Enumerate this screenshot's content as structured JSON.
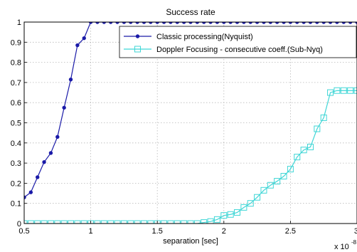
{
  "chart_data": {
    "type": "line",
    "title": "Success rate",
    "xlabel": "separation [sec]",
    "ylabel": "",
    "x_exponent_base": "x 10",
    "x_exponent_power": "-8",
    "xlim": [
      0.5,
      3
    ],
    "ylim": [
      0,
      1
    ],
    "xticks": [
      0.5,
      1,
      1.5,
      2,
      2.5,
      3
    ],
    "xtick_labels": [
      "0.5",
      "1",
      "1.5",
      "2",
      "2.5",
      "3"
    ],
    "yticks": [
      0,
      0.1,
      0.2,
      0.3,
      0.4,
      0.5,
      0.6,
      0.7,
      0.8,
      0.9,
      1
    ],
    "ytick_labels": [
      "0",
      "0.1",
      "0.2",
      "0.3",
      "0.4",
      "0.5",
      "0.6",
      "0.7",
      "0.8",
      "0.9",
      "1"
    ],
    "grid": true,
    "legend_position": "top-right",
    "series": [
      {
        "name": "Classic processing(Nyquist)",
        "color": "#1a1aa8",
        "marker": "dot",
        "x": [
          0.5,
          0.55,
          0.6,
          0.65,
          0.7,
          0.75,
          0.8,
          0.85,
          0.9,
          0.95,
          1.0,
          1.05,
          1.1,
          1.15,
          1.2,
          1.25,
          1.3,
          1.35,
          1.4,
          1.45,
          1.5,
          1.55,
          1.6,
          1.65,
          1.7,
          1.75,
          1.8,
          1.85,
          1.9,
          1.95,
          2.0,
          2.05,
          2.1,
          2.15,
          2.2,
          2.25,
          2.3,
          2.35,
          2.4,
          2.45,
          2.5,
          2.55,
          2.6,
          2.65,
          2.7,
          2.75,
          2.8,
          2.85,
          2.9,
          2.95,
          3.0
        ],
        "y": [
          0.13,
          0.155,
          0.23,
          0.305,
          0.35,
          0.43,
          0.575,
          0.715,
          0.885,
          0.92,
          1.0,
          1.0,
          1.0,
          1.0,
          1.0,
          1.0,
          1.0,
          1.0,
          1.0,
          1.0,
          1.0,
          1.0,
          1.0,
          1.0,
          1.0,
          1.0,
          1.0,
          1.0,
          1.0,
          1.0,
          1.0,
          1.0,
          1.0,
          1.0,
          1.0,
          1.0,
          1.0,
          1.0,
          1.0,
          1.0,
          1.0,
          1.0,
          1.0,
          1.0,
          1.0,
          1.0,
          1.0,
          1.0,
          1.0,
          1.0,
          1.0
        ]
      },
      {
        "name": "Doppler Focusing - consecutive coeff.(Sub-Nyq)",
        "color": "#3fd6d6",
        "marker": "square",
        "x": [
          0.5,
          0.55,
          0.6,
          0.65,
          0.7,
          0.75,
          0.8,
          0.85,
          0.9,
          0.95,
          1.0,
          1.05,
          1.1,
          1.15,
          1.2,
          1.25,
          1.3,
          1.35,
          1.4,
          1.45,
          1.5,
          1.55,
          1.6,
          1.65,
          1.7,
          1.75,
          1.8,
          1.85,
          1.9,
          1.95,
          2.0,
          2.05,
          2.1,
          2.15,
          2.2,
          2.25,
          2.3,
          2.35,
          2.4,
          2.45,
          2.5,
          2.55,
          2.6,
          2.65,
          2.7,
          2.75,
          2.8,
          2.85,
          2.9,
          2.95,
          3.0
        ],
        "y": [
          0,
          0,
          0,
          0,
          0,
          0,
          0,
          0,
          0,
          0,
          0,
          0,
          0,
          0,
          0,
          0,
          0,
          0,
          0,
          0,
          0,
          0,
          0,
          0,
          0,
          0,
          0,
          0.005,
          0.01,
          0.02,
          0.04,
          0.045,
          0.055,
          0.08,
          0.1,
          0.13,
          0.165,
          0.19,
          0.21,
          0.235,
          0.27,
          0.33,
          0.365,
          0.38,
          0.47,
          0.525,
          0.65,
          0.66,
          0.66,
          0.66,
          0.66
        ]
      }
    ]
  }
}
